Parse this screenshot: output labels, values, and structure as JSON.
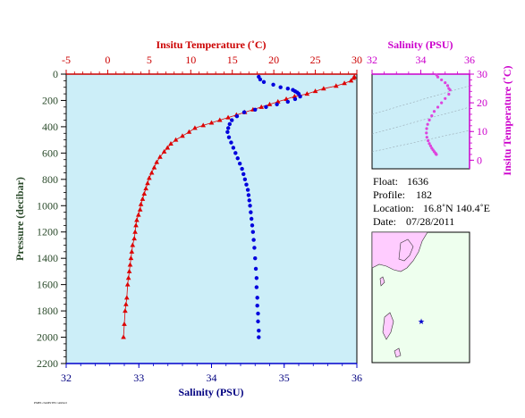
{
  "main_profile": {
    "top_axis_title": "Insitu Temperature (˚C)",
    "top_ticks": [
      "-5",
      "0",
      "5",
      "10",
      "15",
      "20",
      "25",
      "30"
    ],
    "bottom_axis_title": "Salinity (PSU)",
    "bottom_ticks": [
      "32",
      "33",
      "34",
      "35",
      "36"
    ],
    "y_axis_title": "Pressure (decibar)",
    "y_ticks": [
      "0",
      "200",
      "400",
      "600",
      "800",
      "1000",
      "1200",
      "1400",
      "1600",
      "1800",
      "2000",
      "2200"
    ]
  },
  "ts_inset": {
    "top_axis_title": "Salinity (PSU)",
    "top_ticks": [
      "32",
      "34",
      "36"
    ],
    "right_axis_title": "Insitu Temperature (˚C)",
    "right_ticks": [
      "0",
      "10",
      "20",
      "30"
    ]
  },
  "float_info": {
    "float_label": "Float:",
    "float_value": "1636",
    "profile_label": "Profile:",
    "profile_value": "182",
    "location_label": "Location:",
    "location_value": "16.8˚N  140.4˚E",
    "date_label": "Date:",
    "date_value": "07/28/2011"
  },
  "small_print": "PMEL/JAMSTEC/ARGO",
  "colors": {
    "temperature": "#dd0000",
    "salinity": "#0000dd",
    "ts": "#dd44dd",
    "plot_bg": "#cceef8",
    "map_sea": "#eeffee",
    "map_land": "#ffccff"
  },
  "chart_data": [
    {
      "type": "line",
      "title": "",
      "y_label": "Pressure (decibar)",
      "y_range": [
        2200,
        0
      ],
      "series": [
        {
          "name": "Insitu Temperature (˚C)",
          "axis": "top",
          "x_range": [
            -5,
            30
          ],
          "x": [
            29.7,
            29.6,
            29.3,
            28.5,
            27.5,
            26.0,
            25.0,
            24.0,
            22.5,
            21.5,
            20.5,
            19.5,
            18.5,
            17.5,
            16.5,
            15.5,
            14.5,
            13.5,
            12.5,
            11.5,
            10.5,
            9.8,
            9.0,
            8.2,
            7.6,
            7.2,
            6.8,
            6.3,
            5.9,
            5.6,
            5.3,
            5.0,
            4.8,
            4.6,
            4.4,
            4.2,
            4.0,
            3.9,
            3.7,
            3.5,
            3.4,
            3.3,
            3.2,
            3.0,
            2.9,
            2.8,
            2.7,
            2.6,
            2.5,
            2.4,
            2.3,
            2.2,
            2.1,
            2.0,
            1.9
          ],
          "y": [
            20,
            30,
            50,
            70,
            90,
            110,
            130,
            150,
            170,
            190,
            210,
            230,
            250,
            270,
            290,
            310,
            330,
            350,
            370,
            390,
            410,
            440,
            470,
            500,
            530,
            560,
            590,
            630,
            670,
            710,
            750,
            790,
            830,
            870,
            910,
            950,
            990,
            1030,
            1070,
            1110,
            1150,
            1200,
            1250,
            1300,
            1350,
            1400,
            1450,
            1500,
            1550,
            1600,
            1700,
            1750,
            1800,
            1900,
            2000
          ]
        },
        {
          "name": "Salinity (PSU)",
          "axis": "bottom",
          "x_range": [
            32,
            36
          ],
          "x": [
            34.65,
            34.67,
            34.72,
            34.85,
            34.95,
            35.05,
            35.12,
            35.15,
            35.18,
            35.2,
            35.22,
            35.15,
            35.05,
            34.9,
            34.75,
            34.6,
            34.45,
            34.35,
            34.28,
            34.25,
            34.23,
            34.22,
            34.24,
            34.27,
            34.3,
            34.33,
            34.36,
            34.39,
            34.42,
            34.44,
            34.46,
            34.48,
            34.5,
            34.51,
            34.52,
            34.53,
            34.54,
            34.55,
            34.56,
            34.57,
            34.58,
            34.59,
            34.6,
            34.61,
            34.62,
            34.62,
            34.63,
            34.63,
            34.64,
            34.64,
            34.65,
            34.65
          ],
          "y": [
            20,
            40,
            60,
            80,
            100,
            110,
            120,
            130,
            140,
            150,
            170,
            190,
            210,
            230,
            250,
            270,
            290,
            320,
            350,
            380,
            410,
            440,
            480,
            520,
            560,
            600,
            640,
            680,
            720,
            760,
            800,
            840,
            880,
            920,
            960,
            1000,
            1050,
            1100,
            1150,
            1200,
            1260,
            1320,
            1400,
            1480,
            1550,
            1620,
            1700,
            1760,
            1820,
            1880,
            1950,
            2000
          ]
        }
      ]
    },
    {
      "type": "scatter",
      "title": "",
      "x_label": "Salinity (PSU)",
      "y_label": "Insitu Temperature (˚C)",
      "x_range": [
        32,
        36
      ],
      "y_range": [
        -3,
        30
      ],
      "points_x": [
        34.65,
        34.7,
        34.85,
        35.0,
        35.1,
        35.15,
        35.2,
        35.15,
        35.0,
        34.85,
        34.7,
        34.55,
        34.45,
        34.35,
        34.28,
        34.24,
        34.23,
        34.25,
        34.3,
        34.35,
        34.4,
        34.45,
        34.5,
        34.55,
        34.6,
        34.62,
        34.64
      ],
      "points_y": [
        29.7,
        29.0,
        28.0,
        27.0,
        26.0,
        25.0,
        24.5,
        23.0,
        21.5,
        20.0,
        18.5,
        17.0,
        15.5,
        14.0,
        12.5,
        11.0,
        9.5,
        8.0,
        6.8,
        5.8,
        5.0,
        4.2,
        3.6,
        3.0,
        2.5,
        2.2,
        2.0
      ]
    }
  ],
  "map": {
    "marker_label": "★"
  }
}
